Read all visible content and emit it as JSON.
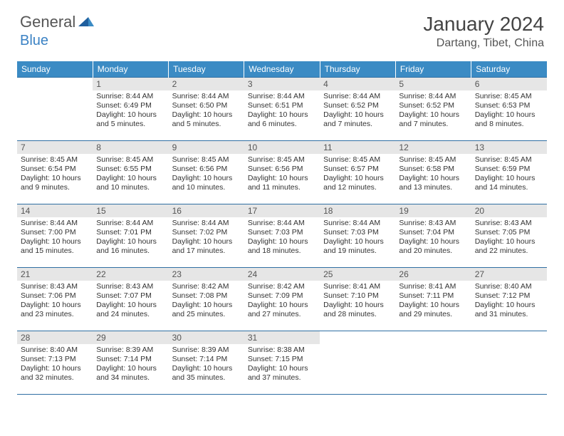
{
  "logo": {
    "text1": "General",
    "text2": "Blue"
  },
  "title": "January 2024",
  "location": "Dartang, Tibet, China",
  "colors": {
    "header_bg": "#3b8bc4",
    "header_fg": "#ffffff",
    "daynum_bg": "#e6e6e6",
    "daynum_fg": "#555555",
    "border": "#2f6fa3",
    "text": "#333333",
    "logo_gray": "#555555",
    "logo_blue": "#3b82c4"
  },
  "weekdays": [
    "Sunday",
    "Monday",
    "Tuesday",
    "Wednesday",
    "Thursday",
    "Friday",
    "Saturday"
  ],
  "weeks": [
    [
      null,
      {
        "day": "1",
        "sunrise": "Sunrise: 8:44 AM",
        "sunset": "Sunset: 6:49 PM",
        "daylight": "Daylight: 10 hours and 5 minutes."
      },
      {
        "day": "2",
        "sunrise": "Sunrise: 8:44 AM",
        "sunset": "Sunset: 6:50 PM",
        "daylight": "Daylight: 10 hours and 5 minutes."
      },
      {
        "day": "3",
        "sunrise": "Sunrise: 8:44 AM",
        "sunset": "Sunset: 6:51 PM",
        "daylight": "Daylight: 10 hours and 6 minutes."
      },
      {
        "day": "4",
        "sunrise": "Sunrise: 8:44 AM",
        "sunset": "Sunset: 6:52 PM",
        "daylight": "Daylight: 10 hours and 7 minutes."
      },
      {
        "day": "5",
        "sunrise": "Sunrise: 8:44 AM",
        "sunset": "Sunset: 6:52 PM",
        "daylight": "Daylight: 10 hours and 7 minutes."
      },
      {
        "day": "6",
        "sunrise": "Sunrise: 8:45 AM",
        "sunset": "Sunset: 6:53 PM",
        "daylight": "Daylight: 10 hours and 8 minutes."
      }
    ],
    [
      {
        "day": "7",
        "sunrise": "Sunrise: 8:45 AM",
        "sunset": "Sunset: 6:54 PM",
        "daylight": "Daylight: 10 hours and 9 minutes."
      },
      {
        "day": "8",
        "sunrise": "Sunrise: 8:45 AM",
        "sunset": "Sunset: 6:55 PM",
        "daylight": "Daylight: 10 hours and 10 minutes."
      },
      {
        "day": "9",
        "sunrise": "Sunrise: 8:45 AM",
        "sunset": "Sunset: 6:56 PM",
        "daylight": "Daylight: 10 hours and 10 minutes."
      },
      {
        "day": "10",
        "sunrise": "Sunrise: 8:45 AM",
        "sunset": "Sunset: 6:56 PM",
        "daylight": "Daylight: 10 hours and 11 minutes."
      },
      {
        "day": "11",
        "sunrise": "Sunrise: 8:45 AM",
        "sunset": "Sunset: 6:57 PM",
        "daylight": "Daylight: 10 hours and 12 minutes."
      },
      {
        "day": "12",
        "sunrise": "Sunrise: 8:45 AM",
        "sunset": "Sunset: 6:58 PM",
        "daylight": "Daylight: 10 hours and 13 minutes."
      },
      {
        "day": "13",
        "sunrise": "Sunrise: 8:45 AM",
        "sunset": "Sunset: 6:59 PM",
        "daylight": "Daylight: 10 hours and 14 minutes."
      }
    ],
    [
      {
        "day": "14",
        "sunrise": "Sunrise: 8:44 AM",
        "sunset": "Sunset: 7:00 PM",
        "daylight": "Daylight: 10 hours and 15 minutes."
      },
      {
        "day": "15",
        "sunrise": "Sunrise: 8:44 AM",
        "sunset": "Sunset: 7:01 PM",
        "daylight": "Daylight: 10 hours and 16 minutes."
      },
      {
        "day": "16",
        "sunrise": "Sunrise: 8:44 AM",
        "sunset": "Sunset: 7:02 PM",
        "daylight": "Daylight: 10 hours and 17 minutes."
      },
      {
        "day": "17",
        "sunrise": "Sunrise: 8:44 AM",
        "sunset": "Sunset: 7:03 PM",
        "daylight": "Daylight: 10 hours and 18 minutes."
      },
      {
        "day": "18",
        "sunrise": "Sunrise: 8:44 AM",
        "sunset": "Sunset: 7:03 PM",
        "daylight": "Daylight: 10 hours and 19 minutes."
      },
      {
        "day": "19",
        "sunrise": "Sunrise: 8:43 AM",
        "sunset": "Sunset: 7:04 PM",
        "daylight": "Daylight: 10 hours and 20 minutes."
      },
      {
        "day": "20",
        "sunrise": "Sunrise: 8:43 AM",
        "sunset": "Sunset: 7:05 PM",
        "daylight": "Daylight: 10 hours and 22 minutes."
      }
    ],
    [
      {
        "day": "21",
        "sunrise": "Sunrise: 8:43 AM",
        "sunset": "Sunset: 7:06 PM",
        "daylight": "Daylight: 10 hours and 23 minutes."
      },
      {
        "day": "22",
        "sunrise": "Sunrise: 8:43 AM",
        "sunset": "Sunset: 7:07 PM",
        "daylight": "Daylight: 10 hours and 24 minutes."
      },
      {
        "day": "23",
        "sunrise": "Sunrise: 8:42 AM",
        "sunset": "Sunset: 7:08 PM",
        "daylight": "Daylight: 10 hours and 25 minutes."
      },
      {
        "day": "24",
        "sunrise": "Sunrise: 8:42 AM",
        "sunset": "Sunset: 7:09 PM",
        "daylight": "Daylight: 10 hours and 27 minutes."
      },
      {
        "day": "25",
        "sunrise": "Sunrise: 8:41 AM",
        "sunset": "Sunset: 7:10 PM",
        "daylight": "Daylight: 10 hours and 28 minutes."
      },
      {
        "day": "26",
        "sunrise": "Sunrise: 8:41 AM",
        "sunset": "Sunset: 7:11 PM",
        "daylight": "Daylight: 10 hours and 29 minutes."
      },
      {
        "day": "27",
        "sunrise": "Sunrise: 8:40 AM",
        "sunset": "Sunset: 7:12 PM",
        "daylight": "Daylight: 10 hours and 31 minutes."
      }
    ],
    [
      {
        "day": "28",
        "sunrise": "Sunrise: 8:40 AM",
        "sunset": "Sunset: 7:13 PM",
        "daylight": "Daylight: 10 hours and 32 minutes."
      },
      {
        "day": "29",
        "sunrise": "Sunrise: 8:39 AM",
        "sunset": "Sunset: 7:14 PM",
        "daylight": "Daylight: 10 hours and 34 minutes."
      },
      {
        "day": "30",
        "sunrise": "Sunrise: 8:39 AM",
        "sunset": "Sunset: 7:14 PM",
        "daylight": "Daylight: 10 hours and 35 minutes."
      },
      {
        "day": "31",
        "sunrise": "Sunrise: 8:38 AM",
        "sunset": "Sunset: 7:15 PM",
        "daylight": "Daylight: 10 hours and 37 minutes."
      },
      null,
      null,
      null
    ]
  ]
}
